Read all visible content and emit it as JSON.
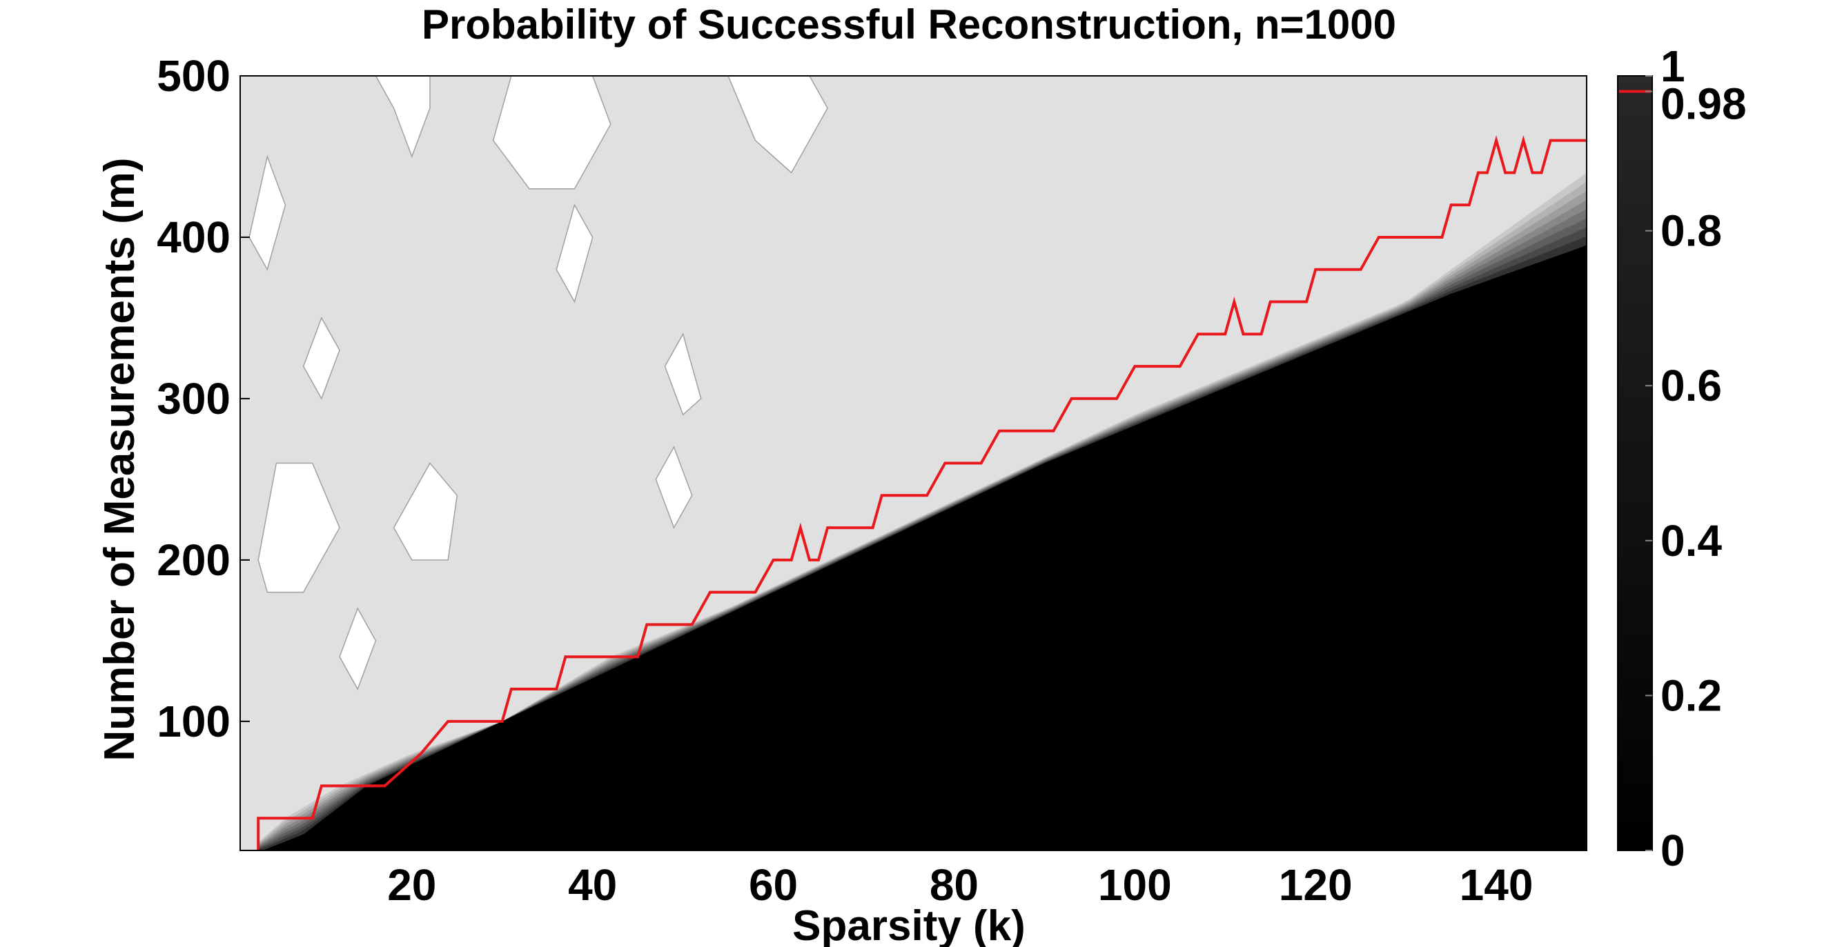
{
  "colors": {
    "background": "#ffffff",
    "success_region": "#e0e0e0",
    "failure_region": "#000000",
    "contour_line": "#a0a0a0",
    "red_line": "#e8181d",
    "axis": "#000000"
  },
  "chart_data": {
    "type": "heatmap",
    "title": "Probability of Successful Reconstruction, n=1000",
    "xlabel": "Sparsity (k)",
    "ylabel": "Number of Measurements (m)",
    "xlim": [
      1,
      150
    ],
    "ylim": [
      20,
      500
    ],
    "xticks": [
      20,
      40,
      60,
      80,
      100,
      120,
      140
    ],
    "yticks": [
      100,
      200,
      300,
      400,
      500
    ],
    "colorbar": {
      "ticks": [
        0,
        0.2,
        0.4,
        0.6,
        0.8,
        0.98,
        1
      ],
      "marked_level": 0.98
    },
    "phase_transition": {
      "description": "success probability drops to 0 below boundary, with contour bands",
      "lower_boundary": [
        [
          3.5,
          20
        ],
        [
          8,
          30
        ],
        [
          15,
          60
        ],
        [
          30,
          100
        ],
        [
          45,
          140
        ],
        [
          60,
          180
        ],
        [
          75,
          220
        ],
        [
          90,
          260
        ],
        [
          105,
          295
        ],
        [
          120,
          330
        ],
        [
          135,
          365
        ],
        [
          150,
          395
        ]
      ],
      "upper_boundary": [
        [
          2,
          20
        ],
        [
          6,
          40
        ],
        [
          12,
          60
        ],
        [
          20,
          80
        ],
        [
          30,
          100
        ],
        [
          42,
          140
        ],
        [
          55,
          170
        ],
        [
          70,
          210
        ],
        [
          85,
          250
        ],
        [
          100,
          290
        ],
        [
          115,
          325
        ],
        [
          130,
          360
        ],
        [
          150,
          440
        ]
      ]
    },
    "series": [
      {
        "name": "0.98 contour",
        "x": [
          3,
          3,
          4,
          9,
          10,
          16,
          17,
          21,
          24,
          30,
          31,
          36,
          37,
          45,
          46,
          51,
          53,
          58,
          60,
          62,
          63,
          64,
          65,
          66,
          71,
          72,
          77,
          79,
          83,
          85,
          91,
          93,
          98,
          100,
          105,
          107,
          110,
          111,
          112,
          113,
          114,
          115,
          119,
          120,
          125,
          127,
          134,
          135,
          137,
          138,
          139,
          140,
          141,
          142,
          143,
          144,
          145,
          146,
          147,
          150
        ],
        "y": [
          20,
          40,
          40,
          40,
          60,
          60,
          60,
          80,
          100,
          100,
          120,
          120,
          140,
          140,
          160,
          160,
          180,
          180,
          200,
          200,
          220,
          200,
          200,
          220,
          220,
          240,
          240,
          260,
          260,
          280,
          280,
          300,
          300,
          320,
          320,
          340,
          340,
          360,
          340,
          340,
          340,
          360,
          360,
          380,
          380,
          400,
          400,
          420,
          420,
          440,
          440,
          460,
          440,
          440,
          460,
          440,
          440,
          460,
          460,
          460
        ]
      }
    ],
    "white_patches": [
      [
        [
          16,
          500
        ],
        [
          22,
          500
        ],
        [
          22,
          480
        ],
        [
          20,
          450
        ],
        [
          18,
          480
        ]
      ],
      [
        [
          29,
          460
        ],
        [
          31,
          500
        ],
        [
          40,
          500
        ],
        [
          42,
          470
        ],
        [
          38,
          430
        ],
        [
          33,
          430
        ]
      ],
      [
        [
          36,
          380
        ],
        [
          38,
          420
        ],
        [
          40,
          400
        ],
        [
          38,
          360
        ]
      ],
      [
        [
          55,
          500
        ],
        [
          64,
          500
        ],
        [
          66,
          480
        ],
        [
          62,
          440
        ],
        [
          58,
          460
        ]
      ],
      [
        [
          48,
          320
        ],
        [
          50,
          340
        ],
        [
          52,
          300
        ],
        [
          50,
          290
        ]
      ],
      [
        [
          47,
          250
        ],
        [
          49,
          270
        ],
        [
          51,
          240
        ],
        [
          49,
          220
        ]
      ],
      [
        [
          3,
          200
        ],
        [
          5,
          260
        ],
        [
          9,
          260
        ],
        [
          12,
          220
        ],
        [
          8,
          180
        ],
        [
          4,
          180
        ]
      ],
      [
        [
          18,
          220
        ],
        [
          22,
          260
        ],
        [
          25,
          240
        ],
        [
          24,
          200
        ],
        [
          20,
          200
        ]
      ],
      [
        [
          12,
          140
        ],
        [
          14,
          170
        ],
        [
          16,
          150
        ],
        [
          14,
          120
        ]
      ],
      [
        [
          2,
          400
        ],
        [
          4,
          450
        ],
        [
          6,
          420
        ],
        [
          4,
          380
        ]
      ],
      [
        [
          8,
          320
        ],
        [
          10,
          350
        ],
        [
          12,
          330
        ],
        [
          10,
          300
        ]
      ]
    ]
  }
}
